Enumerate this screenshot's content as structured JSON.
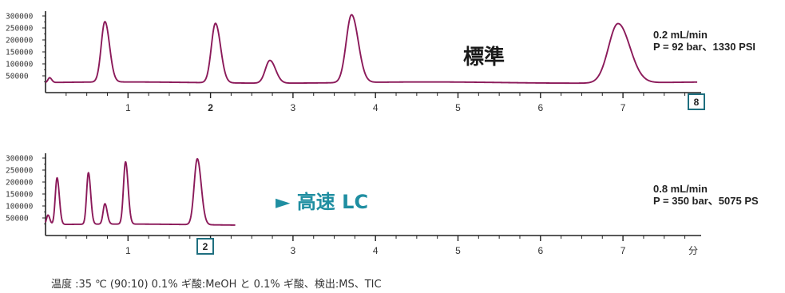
{
  "chart_data": [
    {
      "type": "line",
      "label": "標準",
      "conditions": [
        "0.2 mL/min",
        "P = 92 bar、1330 PSI"
      ],
      "x_label": "",
      "x_range": [
        0,
        7.0
      ],
      "x_ticks": [
        "1",
        "2",
        "3",
        "4",
        "5",
        "6",
        "7"
      ],
      "bold_tick": "2",
      "boxed_marker": "8",
      "y_ticks": [
        "300000",
        "250000",
        "200000",
        "150000",
        "100000",
        "50000"
      ],
      "y_range": [
        0,
        320000
      ],
      "baseline": 22000,
      "line_color": "#8b1a5a",
      "peaks": [
        {
          "rt": 0.05,
          "height": 20000,
          "sigma": 0.02
        },
        {
          "rt": 0.72,
          "height": 252000,
          "sigma": 0.045
        },
        {
          "rt": 2.06,
          "height": 248000,
          "sigma": 0.05
        },
        {
          "rt": 2.72,
          "height": 95000,
          "sigma": 0.055
        },
        {
          "rt": 3.71,
          "height": 283000,
          "sigma": 0.065
        },
        {
          "rt": 6.94,
          "height": 248000,
          "sigma": 0.115
        }
      ]
    },
    {
      "type": "line",
      "label": "► 高速 LC",
      "conditions": [
        "0.8 mL/min",
        "P = 350 bar、5075 PS"
      ],
      "x_label": "分",
      "x_range": [
        0,
        7.0
      ],
      "x_ticks": [
        "1",
        "3",
        "4",
        "5",
        "6",
        "7"
      ],
      "boxed_marker": "2",
      "y_ticks": [
        "300000",
        "250000",
        "200000",
        "150000",
        "100000",
        "50000"
      ],
      "y_range": [
        0,
        320000
      ],
      "baseline": 22000,
      "trace_end": 2.3,
      "line_color": "#8b1a5a",
      "peaks": [
        {
          "rt": 0.03,
          "height": 40000,
          "sigma": 0.018
        },
        {
          "rt": 0.14,
          "height": 195000,
          "sigma": 0.022
        },
        {
          "rt": 0.52,
          "height": 215000,
          "sigma": 0.022
        },
        {
          "rt": 0.72,
          "height": 85000,
          "sigma": 0.022
        },
        {
          "rt": 0.97,
          "height": 260000,
          "sigma": 0.025
        },
        {
          "rt": 1.84,
          "height": 275000,
          "sigma": 0.038
        }
      ]
    }
  ],
  "footnote": "温度 :35 ℃ (90:10) 0.1% ギ酸:MeOH と 0.1% ギ酸、検出:MS、TIC",
  "colors": {
    "trace": "#8b1a5a",
    "box": "#1f6f7f",
    "accent_blue": "#1f8ea1"
  }
}
